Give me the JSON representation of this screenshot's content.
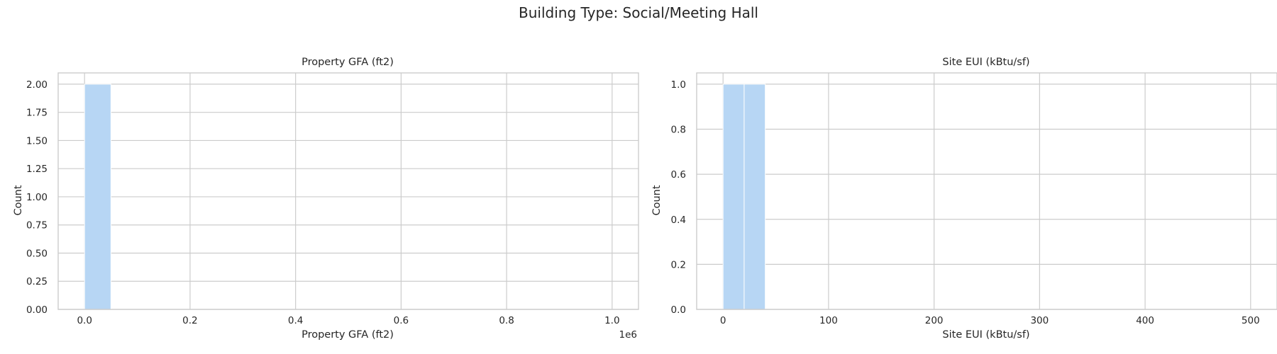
{
  "figure": {
    "title": "Building Type: Social/Meeting Hall"
  },
  "colors": {
    "bar": "#b7d6f4",
    "grid": "#cccccc",
    "text": "#262626"
  },
  "chart_data": [
    {
      "type": "bar",
      "chart_kind": "histogram",
      "title": "Property GFA (ft2)",
      "xlabel": "Property GFA (ft2)",
      "ylabel": "Count",
      "x_offset_label": "1e6",
      "xlim": [
        -0.05,
        1.05
      ],
      "ylim": [
        0,
        2.1
      ],
      "x_ticks": [
        0.0,
        0.2,
        0.4,
        0.6,
        0.8,
        1.0
      ],
      "x_tick_labels": [
        "0.0",
        "0.2",
        "0.4",
        "0.6",
        "0.8",
        "1.0"
      ],
      "y_ticks": [
        0.0,
        0.25,
        0.5,
        0.75,
        1.0,
        1.25,
        1.5,
        1.75,
        2.0
      ],
      "y_tick_labels": [
        "0.00",
        "0.25",
        "0.50",
        "0.75",
        "1.00",
        "1.25",
        "1.50",
        "1.75",
        "2.00"
      ],
      "grid": true,
      "bins": [
        {
          "x_start": 0.0,
          "x_end": 0.05,
          "count": 2
        }
      ]
    },
    {
      "type": "bar",
      "chart_kind": "histogram",
      "title": "Site EUI (kBtu/sf)",
      "xlabel": "Site EUI (kBtu/sf)",
      "ylabel": "Count",
      "xlim": [
        -25,
        525
      ],
      "ylim": [
        0,
        1.05
      ],
      "x_ticks": [
        0,
        100,
        200,
        300,
        400,
        500
      ],
      "x_tick_labels": [
        "0",
        "100",
        "200",
        "300",
        "400",
        "500"
      ],
      "y_ticks": [
        0.0,
        0.2,
        0.4,
        0.6,
        0.8,
        1.0
      ],
      "y_tick_labels": [
        "0.0",
        "0.2",
        "0.4",
        "0.6",
        "0.8",
        "1.0"
      ],
      "grid": true,
      "bins": [
        {
          "x_start": 0,
          "x_end": 20,
          "count": 1
        },
        {
          "x_start": 20,
          "x_end": 40,
          "count": 1
        }
      ]
    }
  ]
}
